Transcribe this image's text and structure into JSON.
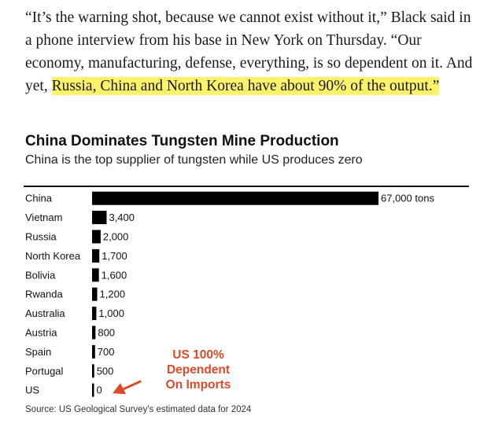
{
  "article": {
    "quote_plain": "“It’s the warning shot, because we cannot exist without it,” Black said in a phone interview from his base in New York on Thursday. “Our economy, manufacturing, defense, everything, is so dependent on it. And yet, ",
    "quote_highlight": "Russia, China and North Korea have about 90% of the output.”",
    "highlight_color": "#fdf36a"
  },
  "chart_data": {
    "type": "bar",
    "orientation": "horizontal",
    "title": "China Dominates Tungsten Mine Production",
    "subtitle": "China is the top supplier of tungsten while US produces zero",
    "categories": [
      "China",
      "Vietnam",
      "Russia",
      "North Korea",
      "Bolivia",
      "Rwanda",
      "Australia",
      "Austria",
      "Spain",
      "Portugal",
      "US"
    ],
    "values": [
      67000,
      3400,
      2000,
      1700,
      1600,
      1200,
      1000,
      800,
      700,
      500,
      0
    ],
    "value_labels": [
      "67,000 tons",
      "3,400",
      "2,000",
      "1,700",
      "1,600",
      "1,200",
      "1,000",
      "800",
      "700",
      "500",
      "0"
    ],
    "unit": "tons",
    "xlim": [
      0,
      67000
    ],
    "grid": false,
    "bar_color": "#000000",
    "source": "Source: US Geological Survey's estimated data for 2024"
  },
  "annotation": {
    "line1": "US 100%",
    "line2": "Dependent",
    "line3": "On Imports",
    "color": "#dd4a2a"
  }
}
